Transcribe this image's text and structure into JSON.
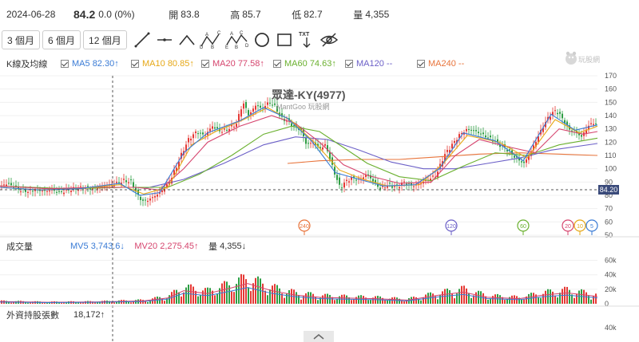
{
  "header": {
    "date": "2024-06-28",
    "close": "84.2",
    "change": "0.0 (0%)",
    "open_label": "開",
    "open": "83.8",
    "high_label": "高",
    "high": "85.7",
    "low_label": "低",
    "low": "82.7",
    "volume_label": "量",
    "volume": "4,355"
  },
  "toolbar": {
    "ranges": [
      "3 個月",
      "6 個月",
      "12 個月"
    ],
    "icons": [
      "trendline-icon",
      "horizontal-line-icon",
      "angle-line-icon",
      "abcd-pattern-icon",
      "abcde-pattern-icon",
      "circle-icon",
      "rectangle-icon",
      "text-arrow-icon",
      "hide-eye-icon"
    ],
    "abcd_letters": [
      "A",
      "B",
      "C",
      "D"
    ],
    "abcde_letters": [
      "A",
      "B",
      "C",
      "D",
      "E"
    ],
    "txt_label": "TXT"
  },
  "price_pane": {
    "label": "K線及均線",
    "ma": [
      {
        "name": "MA5",
        "value": "82.30",
        "arrow": "↑",
        "color": "#3a7bd5"
      },
      {
        "name": "MA10",
        "value": "80.85",
        "arrow": "↑",
        "color": "#e6a817"
      },
      {
        "name": "MA20",
        "value": "77.58",
        "arrow": "↑",
        "color": "#d6456e"
      },
      {
        "name": "MA60",
        "value": "74.63",
        "arrow": "↑",
        "color": "#6ab02e"
      },
      {
        "name": "MA120",
        "value": "--",
        "arrow": "",
        "color": "#6b5fc7"
      },
      {
        "name": "MA240",
        "value": "--",
        "arrow": "",
        "color": "#e8743b"
      }
    ],
    "watermark_title": "眾達-KY(4977)",
    "watermark_sub": "MantGoo 玩股網",
    "logo_text": "玩股網",
    "price_tag": "84.20",
    "markers": [
      {
        "label": "240",
        "color": "#e8743b"
      },
      {
        "label": "120",
        "color": "#6b5fc7"
      },
      {
        "label": "60",
        "color": "#6ab02e"
      },
      {
        "label": "20",
        "color": "#d6456e"
      },
      {
        "label": "10",
        "color": "#e6a817"
      },
      {
        "label": "5",
        "color": "#3a7bd5"
      }
    ]
  },
  "volume_pane": {
    "label": "成交量",
    "mv5_name": "MV5",
    "mv5_value": "3,743.6",
    "mv5_arrow": "↓",
    "mv5_color": "#3a7bd5",
    "mv20_name": "MV20",
    "mv20_value": "2,275.45",
    "mv20_arrow": "↑",
    "mv20_color": "#d6456e",
    "vol_name": "量",
    "vol_value": "4,355",
    "vol_arrow": "↓"
  },
  "foreign_pane": {
    "label": "外資持股張數",
    "value": "18,172",
    "arrow": "↑",
    "axis_label": "40k"
  },
  "chart_data": {
    "type": "line",
    "title": "眾達-KY(4977)",
    "price_axis": {
      "ylim": [
        50,
        170
      ],
      "ticks": [
        170,
        160,
        150,
        140,
        130,
        120,
        110,
        100,
        90,
        80,
        70,
        60,
        50
      ]
    },
    "volume_axis": {
      "ylim": [
        0,
        65000
      ],
      "tick_labels": [
        "60k",
        "40k",
        "20k",
        "0"
      ],
      "tick_values": [
        60000,
        40000,
        20000,
        0
      ]
    },
    "close_path": [
      [
        0,
        86
      ],
      [
        8,
        89
      ],
      [
        16,
        87
      ],
      [
        25,
        84
      ],
      [
        35,
        83
      ],
      [
        45,
        85
      ],
      [
        55,
        83
      ],
      [
        65,
        84
      ],
      [
        75,
        82
      ],
      [
        85,
        84
      ],
      [
        95,
        85
      ],
      [
        105,
        86
      ],
      [
        115,
        85
      ],
      [
        125,
        86
      ],
      [
        135,
        87
      ],
      [
        145,
        89
      ],
      [
        155,
        91
      ],
      [
        165,
        90
      ],
      [
        172,
        80
      ],
      [
        180,
        75
      ],
      [
        190,
        78
      ],
      [
        200,
        82
      ],
      [
        210,
        88
      ],
      [
        220,
        100
      ],
      [
        228,
        112
      ],
      [
        236,
        122
      ],
      [
        246,
        128
      ],
      [
        256,
        125
      ],
      [
        266,
        132
      ],
      [
        276,
        128
      ],
      [
        286,
        130
      ],
      [
        296,
        134
      ],
      [
        304,
        150
      ],
      [
        312,
        140
      ],
      [
        320,
        148
      ],
      [
        328,
        145
      ],
      [
        336,
        150
      ],
      [
        344,
        147
      ],
      [
        352,
        138
      ],
      [
        360,
        136
      ],
      [
        368,
        132
      ],
      [
        376,
        130
      ],
      [
        384,
        118
      ],
      [
        392,
        120
      ],
      [
        400,
        115
      ],
      [
        408,
        118
      ],
      [
        414,
        105
      ],
      [
        420,
        95
      ],
      [
        426,
        85
      ],
      [
        432,
        90
      ],
      [
        440,
        93
      ],
      [
        450,
        92
      ],
      [
        460,
        96
      ],
      [
        468,
        90
      ],
      [
        476,
        85
      ],
      [
        486,
        88
      ],
      [
        496,
        86
      ],
      [
        506,
        90
      ],
      [
        516,
        87
      ],
      [
        526,
        89
      ],
      [
        536,
        92
      ],
      [
        546,
        95
      ],
      [
        556,
        110
      ],
      [
        566,
        118
      ],
      [
        576,
        126
      ],
      [
        586,
        130
      ],
      [
        596,
        128
      ],
      [
        606,
        125
      ],
      [
        616,
        122
      ],
      [
        626,
        118
      ],
      [
        636,
        114
      ],
      [
        646,
        108
      ],
      [
        656,
        104
      ],
      [
        664,
        112
      ],
      [
        672,
        122
      ],
      [
        680,
        132
      ],
      [
        688,
        140
      ],
      [
        696,
        144
      ],
      [
        704,
        138
      ],
      [
        712,
        130
      ],
      [
        720,
        128
      ],
      [
        728,
        124
      ],
      [
        736,
        132
      ],
      [
        744,
        135
      ],
      [
        748,
        132
      ]
    ],
    "ma5": [
      [
        0,
        86
      ],
      [
        50,
        84
      ],
      [
        100,
        85
      ],
      [
        150,
        89
      ],
      [
        175,
        80
      ],
      [
        200,
        82
      ],
      [
        230,
        112
      ],
      [
        260,
        127
      ],
      [
        300,
        136
      ],
      [
        330,
        146
      ],
      [
        360,
        138
      ],
      [
        390,
        121
      ],
      [
        420,
        97
      ],
      [
        450,
        92
      ],
      [
        480,
        87
      ],
      [
        520,
        88
      ],
      [
        550,
        100
      ],
      [
        580,
        127
      ],
      [
        620,
        121
      ],
      [
        655,
        106
      ],
      [
        690,
        141
      ],
      [
        720,
        129
      ],
      [
        748,
        133
      ]
    ],
    "ma10": [
      [
        0,
        86
      ],
      [
        50,
        84
      ],
      [
        100,
        85
      ],
      [
        150,
        88
      ],
      [
        180,
        81
      ],
      [
        210,
        86
      ],
      [
        240,
        118
      ],
      [
        270,
        128
      ],
      [
        305,
        137
      ],
      [
        335,
        146
      ],
      [
        365,
        136
      ],
      [
        395,
        119
      ],
      [
        425,
        99
      ],
      [
        455,
        92
      ],
      [
        485,
        87
      ],
      [
        525,
        88
      ],
      [
        555,
        104
      ],
      [
        585,
        125
      ],
      [
        625,
        120
      ],
      [
        660,
        108
      ],
      [
        695,
        137
      ],
      [
        725,
        127
      ],
      [
        748,
        132
      ]
    ],
    "ma20": [
      [
        0,
        87
      ],
      [
        60,
        85
      ],
      [
        120,
        86
      ],
      [
        170,
        86
      ],
      [
        200,
        84
      ],
      [
        230,
        100
      ],
      [
        260,
        120
      ],
      [
        300,
        132
      ],
      [
        340,
        140
      ],
      [
        370,
        134
      ],
      [
        400,
        120
      ],
      [
        430,
        103
      ],
      [
        460,
        95
      ],
      [
        500,
        89
      ],
      [
        540,
        90
      ],
      [
        570,
        110
      ],
      [
        600,
        122
      ],
      [
        640,
        116
      ],
      [
        670,
        112
      ],
      [
        700,
        130
      ],
      [
        730,
        126
      ],
      [
        748,
        128
      ]
    ],
    "ma60": [
      [
        0,
        87
      ],
      [
        80,
        85
      ],
      [
        160,
        86
      ],
      [
        210,
        86
      ],
      [
        250,
        96
      ],
      [
        290,
        110
      ],
      [
        330,
        126
      ],
      [
        365,
        132
      ],
      [
        400,
        128
      ],
      [
        430,
        116
      ],
      [
        460,
        104
      ],
      [
        500,
        94
      ],
      [
        540,
        91
      ],
      [
        580,
        102
      ],
      [
        620,
        112
      ],
      [
        660,
        110
      ],
      [
        700,
        118
      ],
      [
        748,
        123
      ]
    ],
    "ma120": [
      [
        180,
        85
      ],
      [
        230,
        92
      ],
      [
        280,
        104
      ],
      [
        330,
        118
      ],
      [
        370,
        124
      ],
      [
        410,
        122
      ],
      [
        450,
        114
      ],
      [
        490,
        105
      ],
      [
        530,
        100
      ],
      [
        570,
        100
      ],
      [
        610,
        104
      ],
      [
        650,
        108
      ],
      [
        690,
        114
      ],
      [
        748,
        119
      ]
    ],
    "ma240": [
      [
        360,
        104
      ],
      [
        400,
        106
      ],
      [
        450,
        107
      ],
      [
        500,
        107
      ],
      [
        550,
        109
      ],
      [
        600,
        111
      ],
      [
        650,
        112
      ],
      [
        700,
        111
      ],
      [
        748,
        110
      ]
    ],
    "volume_series": [
      [
        0,
        3000
      ],
      [
        60,
        2000
      ],
      [
        120,
        2500
      ],
      [
        180,
        4000
      ],
      [
        210,
        8000
      ],
      [
        230,
        18000
      ],
      [
        260,
        14000
      ],
      [
        290,
        22000
      ],
      [
        310,
        28000
      ],
      [
        340,
        18000
      ],
      [
        370,
        12000
      ],
      [
        400,
        9000
      ],
      [
        430,
        8000
      ],
      [
        470,
        7000
      ],
      [
        510,
        5000
      ],
      [
        550,
        12000
      ],
      [
        580,
        16000
      ],
      [
        610,
        9000
      ],
      [
        650,
        7000
      ],
      [
        680,
        12000
      ],
      [
        710,
        15000
      ],
      [
        748,
        10000
      ]
    ]
  }
}
